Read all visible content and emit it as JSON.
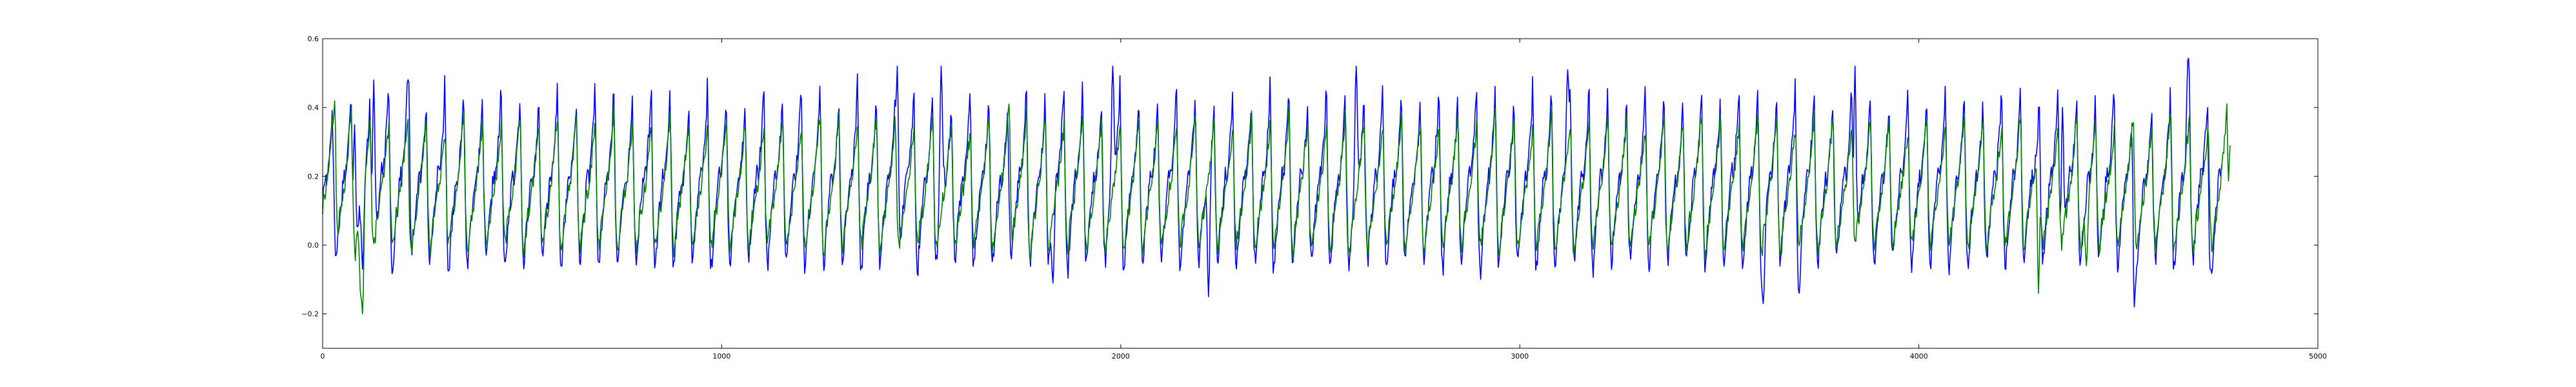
{
  "chart_data": {
    "type": "line",
    "title": "",
    "xlabel": "",
    "ylabel": "",
    "xlim": [
      0,
      5000
    ],
    "ylim": [
      -0.3,
      0.6
    ],
    "x_ticks": [
      {
        "value": 0,
        "label": "0"
      },
      {
        "value": 1000,
        "label": "1000"
      },
      {
        "value": 2000,
        "label": "2000"
      },
      {
        "value": 3000,
        "label": "3000"
      },
      {
        "value": 4000,
        "label": "4000"
      },
      {
        "value": 5000,
        "label": "5000"
      }
    ],
    "y_ticks": [
      {
        "value": -0.2,
        "label": "−0.2"
      },
      {
        "value": 0.0,
        "label": "0.0"
      },
      {
        "value": 0.2,
        "label": "0.2"
      },
      {
        "value": 0.4,
        "label": "0.4"
      },
      {
        "value": 0.6,
        "label": "0.6"
      }
    ],
    "grid": false,
    "series": [
      {
        "color": "#0000ff",
        "x_range": [
          0,
          4760
        ],
        "period": 47,
        "cycle_shape": [
          [
            0.0,
            0.12
          ],
          [
            0.06,
            0.17
          ],
          [
            0.14,
            0.21
          ],
          [
            0.22,
            0.19
          ],
          [
            0.3,
            0.24
          ],
          [
            0.38,
            0.3
          ],
          [
            0.46,
            0.36
          ],
          [
            0.52,
            0.46
          ],
          [
            0.57,
            0.26
          ],
          [
            0.62,
            0.08
          ],
          [
            0.68,
            -0.04
          ],
          [
            0.74,
            -0.06
          ],
          [
            0.8,
            0.0
          ],
          [
            0.88,
            0.06
          ],
          [
            0.95,
            0.1
          ],
          [
            1.0,
            0.12
          ]
        ],
        "peaks": [
          {
            "x": 80,
            "y": 0.35
          },
          {
            "x": 128,
            "y": 0.48
          },
          {
            "x": 215,
            "y": 0.49
          },
          {
            "x": 1440,
            "y": 0.52
          },
          {
            "x": 1550,
            "y": 0.52
          },
          {
            "x": 1980,
            "y": 0.52
          },
          {
            "x": 2590,
            "y": 0.52
          },
          {
            "x": 3120,
            "y": 0.51
          },
          {
            "x": 3840,
            "y": 0.52
          },
          {
            "x": 4360,
            "y": 0.4
          },
          {
            "x": 4675,
            "y": 0.55
          }
        ],
        "troughs": [
          {
            "x": 100,
            "y": -0.07
          },
          {
            "x": 1830,
            "y": -0.11
          },
          {
            "x": 2220,
            "y": -0.15
          },
          {
            "x": 3610,
            "y": -0.17
          },
          {
            "x": 3700,
            "y": -0.14
          },
          {
            "x": 4540,
            "y": -0.18
          },
          {
            "x": 4730,
            "y": -0.07
          }
        ]
      },
      {
        "color": "#008000",
        "x_range": [
          0,
          4780
        ],
        "period": 47,
        "cycle_shape": [
          [
            0.0,
            0.1
          ],
          [
            0.08,
            0.14
          ],
          [
            0.16,
            0.17
          ],
          [
            0.24,
            0.2
          ],
          [
            0.32,
            0.24
          ],
          [
            0.4,
            0.29
          ],
          [
            0.48,
            0.33
          ],
          [
            0.54,
            0.37
          ],
          [
            0.58,
            0.24
          ],
          [
            0.63,
            0.08
          ],
          [
            0.69,
            0.0
          ],
          [
            0.75,
            -0.01
          ],
          [
            0.82,
            0.04
          ],
          [
            0.9,
            0.08
          ],
          [
            1.0,
            0.1
          ]
        ],
        "peaks": [
          {
            "x": 30,
            "y": 0.42
          },
          {
            "x": 1720,
            "y": 0.41
          },
          {
            "x": 4780,
            "y": 0.29
          }
        ],
        "troughs": [
          {
            "x": 95,
            "y": -0.13
          },
          {
            "x": 100,
            "y": -0.2
          },
          {
            "x": 4300,
            "y": -0.14
          },
          {
            "x": 4420,
            "y": -0.06
          }
        ]
      }
    ]
  }
}
